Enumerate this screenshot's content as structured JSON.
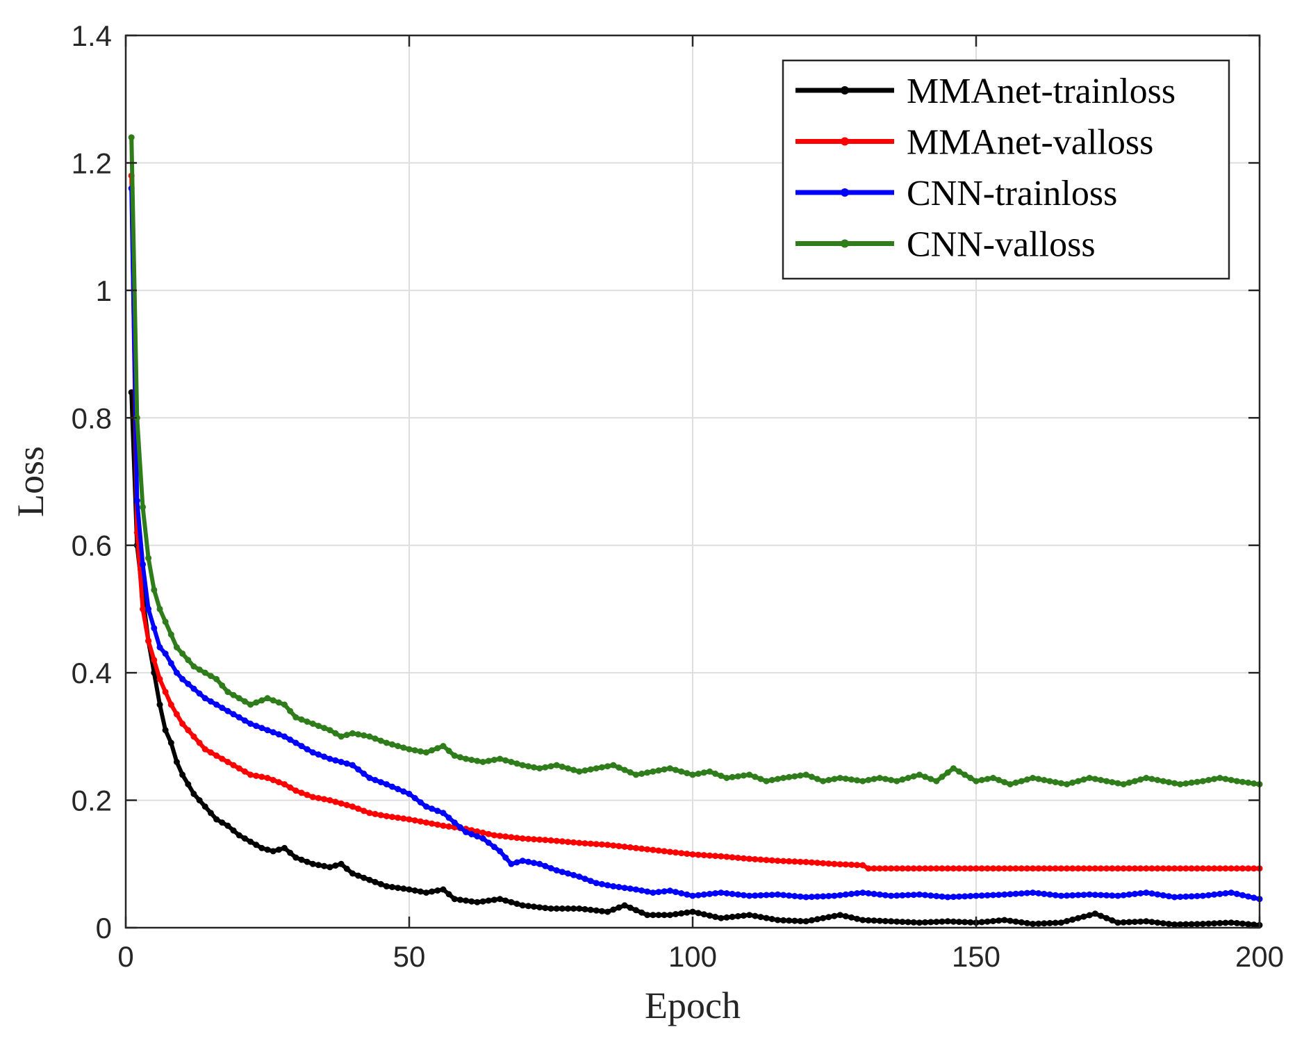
{
  "chart_data": {
    "type": "line",
    "title": "",
    "xlabel": "Epoch",
    "ylabel": "Loss",
    "xlim": [
      0,
      200
    ],
    "ylim": [
      0,
      1.4
    ],
    "xticks": [
      0,
      50,
      100,
      150,
      200
    ],
    "xtick_labels": [
      "0",
      "50",
      "100",
      "150",
      "200"
    ],
    "yticks": [
      0,
      0.2,
      0.4,
      0.6,
      0.8,
      1,
      1.2,
      1.4
    ],
    "ytick_labels": [
      "0",
      "0.2",
      "0.4",
      "0.6",
      "0.8",
      "1",
      "1.2",
      "1.4"
    ],
    "grid": true,
    "legend_position": "top-right",
    "series": [
      {
        "name": "MMAnet-trainloss",
        "color": "#000000",
        "x": [
          1,
          2,
          3,
          4,
          5,
          6,
          7,
          8,
          9,
          10,
          12,
          14,
          16,
          18,
          20,
          22,
          24,
          26,
          28,
          30,
          33,
          36,
          38,
          40,
          43,
          46,
          50,
          53,
          56,
          58,
          62,
          66,
          70,
          75,
          80,
          85,
          88,
          92,
          96,
          100,
          105,
          110,
          115,
          120,
          126,
          130,
          135,
          140,
          145,
          150,
          155,
          160,
          165,
          171,
          175,
          180,
          185,
          190,
          195,
          200
        ],
        "values": [
          0.84,
          0.6,
          0.52,
          0.45,
          0.4,
          0.35,
          0.31,
          0.29,
          0.26,
          0.24,
          0.21,
          0.19,
          0.17,
          0.16,
          0.145,
          0.135,
          0.125,
          0.12,
          0.125,
          0.11,
          0.1,
          0.095,
          0.1,
          0.085,
          0.075,
          0.065,
          0.06,
          0.055,
          0.06,
          0.045,
          0.04,
          0.045,
          0.035,
          0.03,
          0.03,
          0.025,
          0.035,
          0.02,
          0.02,
          0.025,
          0.015,
          0.02,
          0.012,
          0.01,
          0.02,
          0.012,
          0.01,
          0.008,
          0.01,
          0.008,
          0.012,
          0.006,
          0.008,
          0.022,
          0.008,
          0.01,
          0.005,
          0.006,
          0.008,
          0.004
        ]
      },
      {
        "name": "MMAnet-valloss",
        "color": "#ff0000",
        "x": [
          1,
          2,
          3,
          4,
          5,
          6,
          7,
          8,
          9,
          10,
          12,
          14,
          16,
          18,
          20,
          22,
          25,
          28,
          30,
          33,
          36,
          40,
          43,
          46,
          50,
          53,
          56,
          60,
          65,
          70,
          75,
          80,
          85,
          90,
          95,
          100,
          105,
          110,
          115,
          120,
          125,
          130,
          131,
          140,
          150,
          160,
          170,
          180,
          190,
          200
        ],
        "values": [
          1.18,
          0.62,
          0.5,
          0.45,
          0.42,
          0.39,
          0.37,
          0.35,
          0.335,
          0.32,
          0.3,
          0.28,
          0.27,
          0.26,
          0.25,
          0.24,
          0.235,
          0.225,
          0.215,
          0.205,
          0.2,
          0.19,
          0.18,
          0.175,
          0.17,
          0.165,
          0.16,
          0.155,
          0.145,
          0.14,
          0.137,
          0.133,
          0.13,
          0.125,
          0.12,
          0.115,
          0.112,
          0.108,
          0.105,
          0.103,
          0.1,
          0.098,
          0.093,
          0.093,
          0.093,
          0.093,
          0.093,
          0.093,
          0.093,
          0.093
        ]
      },
      {
        "name": "CNN-trainloss",
        "color": "#0000ff",
        "x": [
          1,
          2,
          3,
          4,
          5,
          6,
          7,
          8,
          9,
          10,
          12,
          14,
          16,
          18,
          20,
          22,
          25,
          28,
          30,
          33,
          36,
          40,
          43,
          46,
          50,
          53,
          56,
          58,
          60,
          63,
          66,
          68,
          70,
          73,
          76,
          80,
          83,
          86,
          90,
          93,
          96,
          100,
          105,
          110,
          115,
          120,
          125,
          130,
          135,
          140,
          145,
          150,
          155,
          160,
          165,
          170,
          175,
          180,
          185,
          190,
          195,
          200
        ],
        "values": [
          1.16,
          0.67,
          0.57,
          0.5,
          0.47,
          0.44,
          0.43,
          0.415,
          0.4,
          0.39,
          0.375,
          0.36,
          0.35,
          0.34,
          0.33,
          0.32,
          0.31,
          0.3,
          0.29,
          0.275,
          0.265,
          0.255,
          0.235,
          0.225,
          0.21,
          0.19,
          0.18,
          0.165,
          0.15,
          0.14,
          0.12,
          0.1,
          0.105,
          0.1,
          0.09,
          0.08,
          0.07,
          0.065,
          0.06,
          0.055,
          0.058,
          0.05,
          0.055,
          0.05,
          0.052,
          0.048,
          0.05,
          0.055,
          0.05,
          0.052,
          0.048,
          0.05,
          0.052,
          0.055,
          0.05,
          0.052,
          0.05,
          0.055,
          0.048,
          0.05,
          0.055,
          0.045
        ]
      },
      {
        "name": "CNN-valloss",
        "color": "#2e7d1a",
        "x": [
          1,
          2,
          3,
          4,
          5,
          6,
          7,
          8,
          9,
          10,
          12,
          14,
          16,
          18,
          20,
          22,
          25,
          28,
          30,
          33,
          36,
          38,
          40,
          43,
          46,
          50,
          53,
          56,
          58,
          60,
          63,
          66,
          70,
          73,
          76,
          80,
          83,
          86,
          90,
          93,
          96,
          100,
          103,
          106,
          110,
          113,
          116,
          120,
          123,
          126,
          130,
          133,
          136,
          140,
          143,
          146,
          150,
          153,
          156,
          160,
          163,
          166,
          170,
          173,
          176,
          180,
          183,
          186,
          190,
          193,
          196,
          200
        ],
        "values": [
          1.24,
          0.8,
          0.66,
          0.58,
          0.53,
          0.5,
          0.48,
          0.46,
          0.44,
          0.43,
          0.41,
          0.4,
          0.39,
          0.37,
          0.36,
          0.35,
          0.36,
          0.35,
          0.33,
          0.32,
          0.31,
          0.3,
          0.305,
          0.3,
          0.29,
          0.28,
          0.275,
          0.285,
          0.27,
          0.265,
          0.26,
          0.265,
          0.255,
          0.25,
          0.255,
          0.245,
          0.25,
          0.255,
          0.24,
          0.245,
          0.25,
          0.24,
          0.245,
          0.235,
          0.24,
          0.23,
          0.235,
          0.24,
          0.23,
          0.235,
          0.23,
          0.235,
          0.23,
          0.24,
          0.23,
          0.25,
          0.23,
          0.235,
          0.225,
          0.235,
          0.23,
          0.225,
          0.235,
          0.23,
          0.225,
          0.235,
          0.23,
          0.225,
          0.23,
          0.235,
          0.23,
          0.225
        ]
      }
    ]
  }
}
